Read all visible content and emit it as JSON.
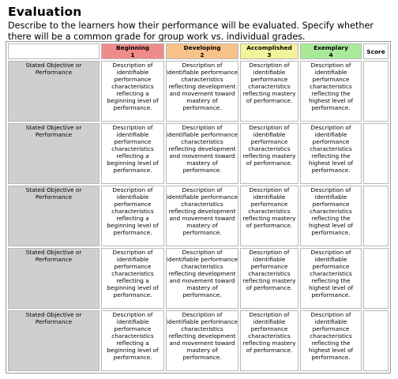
{
  "title": "Evaluation",
  "intro": "Describe to the learners how their performance will be evaluated. Specify whether there will be a common grade for group work vs. individual grades.",
  "columns": {
    "beginning": {
      "label": "Beginning",
      "level": "1"
    },
    "developing": {
      "label": "Developing",
      "level": "2"
    },
    "accomplished": {
      "label": "Accomplished",
      "level": "3"
    },
    "exemplary": {
      "label": "Exemplary",
      "level": "4"
    },
    "score": "Score"
  },
  "colors": {
    "beginning": "#f08b8b",
    "developing": "#f7c289",
    "accomplished": "#f3f39c",
    "exemplary": "#a9ea9a",
    "objective": "#cfcfcf"
  },
  "rows": [
    {
      "objective": "Stated Objective or Performance",
      "beginning": "Description of identifiable performance characteristics reflecting a beginning level of performance.",
      "developing": "Description of identifiable performance characteristics reflecting development and movement toward mastery of performance.",
      "accomplished": "Description of identifiable performance characteristics reflecting mastery of performance.",
      "exemplary": "Description of identifiable performance characteristics reflecting the highest level of performance.",
      "score": ""
    },
    {
      "objective": "Stated Objective or Performance",
      "beginning": "Description of identifiable performance characteristics reflecting a beginning level of performance.",
      "developing": "Description of identifiable performance characteristics reflecting development and movement toward mastery of performance.",
      "accomplished": "Description of identifiable performance characteristics reflecting mastery of performance.",
      "exemplary": "Description of identifiable performance characteristics reflecting the highest level of performance.",
      "score": ""
    },
    {
      "objective": "Stated Objective or Performance",
      "beginning": "Description of identifiable performance characteristics reflecting a beginning level of performance.",
      "developing": "Description of identifiable performance characteristics reflecting development and movement toward mastery of performance.",
      "accomplished": "Description of identifiable performance characteristics reflecting mastery of performance.",
      "exemplary": "Description of identifiable performance characteristics reflecting the highest level of performance.",
      "score": ""
    },
    {
      "objective": "Stated Objective or Performance",
      "beginning": "Description of identifiable performance characteristics reflecting a beginning level of performance.",
      "developing": "Description of identifiable performance characteristics reflecting development and movement toward mastery of performance.",
      "accomplished": "Description of identifiable performance characteristics reflecting mastery of performance.",
      "exemplary": "Description of identifiable performance characteristics reflecting the highest level of performance.",
      "score": ""
    },
    {
      "objective": "Stated Objective or Performance",
      "beginning": "Description of identifiable performance characteristics reflecting a beginning level of performance.",
      "developing": "Description of identifiable performance characteristics reflecting development and movement toward mastery of performance.",
      "accomplished": "Description of identifiable performance characteristics reflecting mastery of performance.",
      "exemplary": "Description of identifiable performance characteristics reflecting the highest level of performance.",
      "score": ""
    }
  ]
}
